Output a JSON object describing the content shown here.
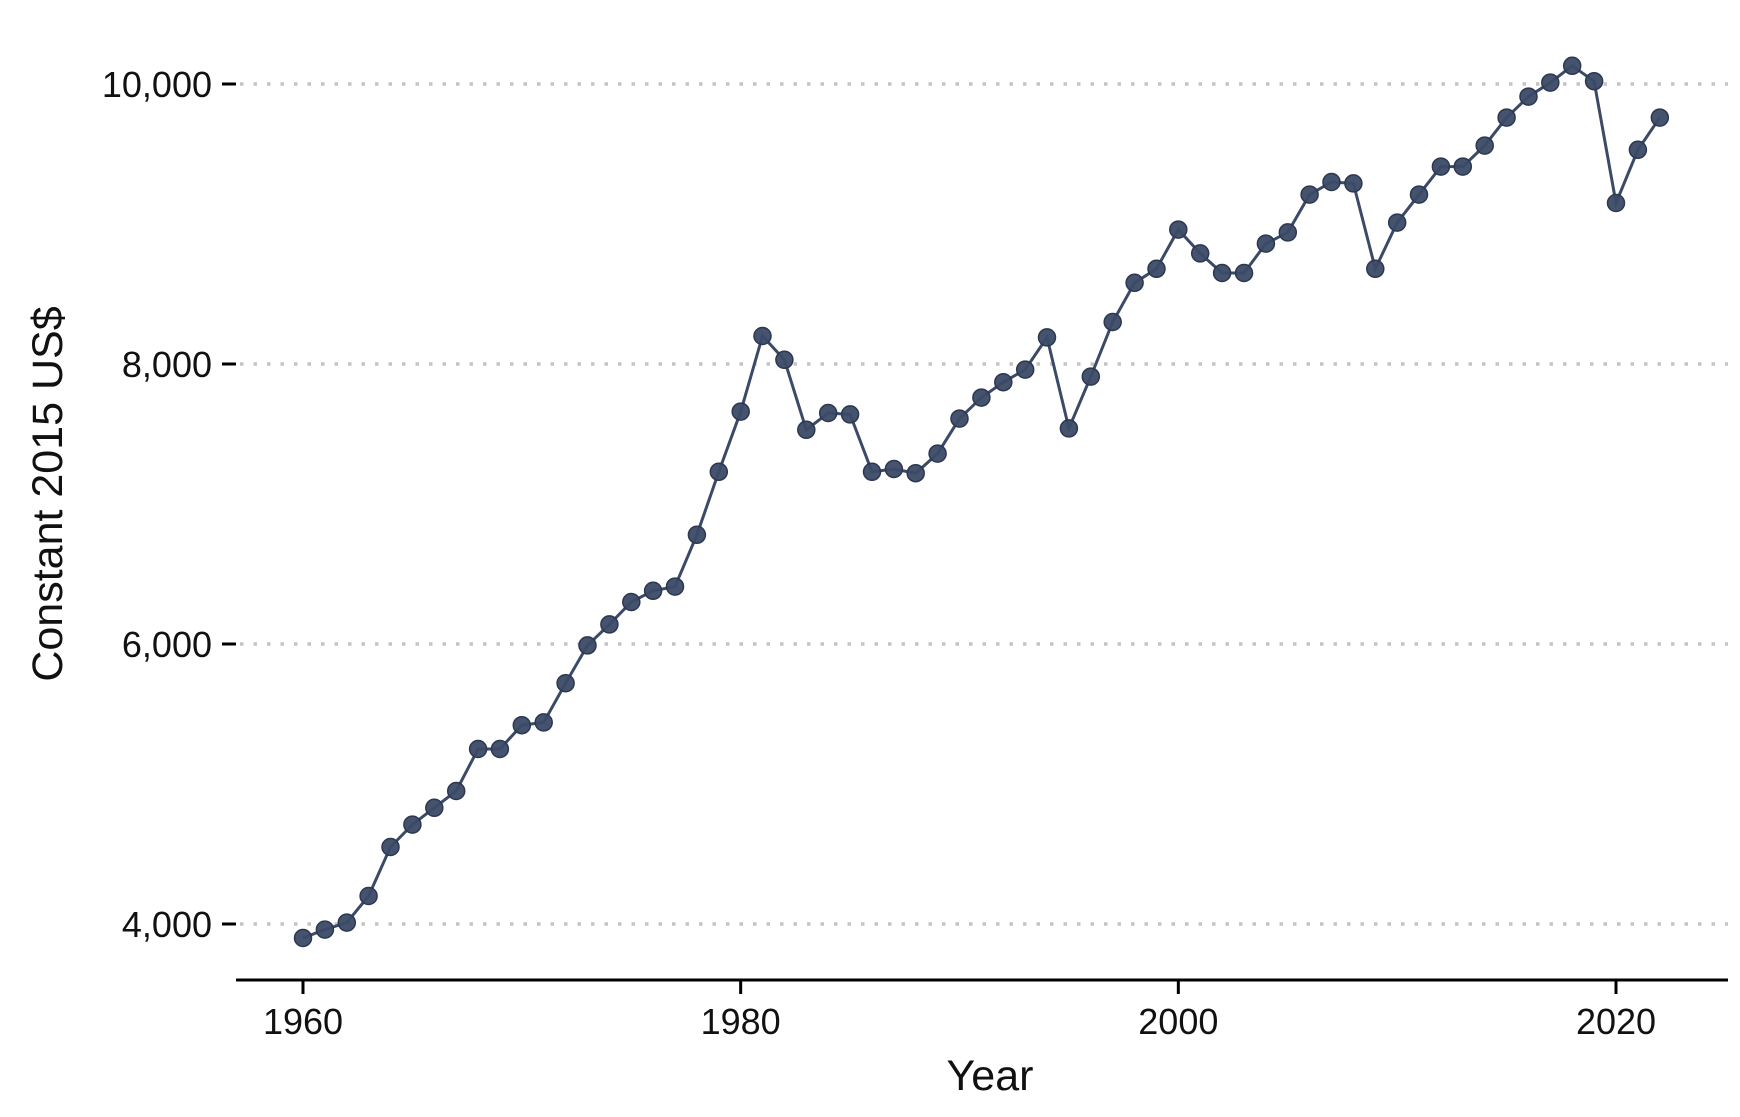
{
  "chart_data": {
    "type": "line",
    "title": "",
    "xlabel": "Year",
    "ylabel": "Constant 2015 US$",
    "xlim": [
      1957,
      2025
    ],
    "ylim": [
      3600,
      10300
    ],
    "xticks": [
      1960,
      1980,
      2000,
      2020
    ],
    "xtick_labels": [
      "1960",
      "1980",
      "2000",
      "2020"
    ],
    "yticks": [
      4000,
      6000,
      8000,
      10000
    ],
    "ytick_labels": [
      "4,000",
      "6,000",
      "8,000",
      "10,000"
    ],
    "grid": "horizontal dotted",
    "legend": "none",
    "line_color": "#3b4a66",
    "grid_color": "#c4c4c4",
    "series": [
      {
        "x": [
          1960,
          1961,
          1962,
          1963,
          1964,
          1965,
          1966,
          1967,
          1968,
          1969,
          1970,
          1971,
          1972,
          1973,
          1974,
          1975,
          1976,
          1977,
          1978,
          1979,
          1980,
          1981,
          1982,
          1983,
          1984,
          1985,
          1986,
          1987,
          1988,
          1989,
          1990,
          1991,
          1992,
          1993,
          1994,
          1995,
          1996,
          1997,
          1998,
          1999,
          2000,
          2001,
          2002,
          2003,
          2004,
          2005,
          2006,
          2007,
          2008,
          2009,
          2010,
          2011,
          2012,
          2013,
          2014,
          2015,
          2016,
          2017,
          2018,
          2019,
          2020,
          2021,
          2022
        ],
        "values": [
          3900,
          3960,
          4010,
          4200,
          4550,
          4710,
          4830,
          4950,
          5250,
          5250,
          5420,
          5440,
          5720,
          5990,
          6140,
          6300,
          6380,
          6410,
          6780,
          7230,
          7660,
          8200,
          8030,
          7530,
          7650,
          7640,
          7230,
          7250,
          7220,
          7360,
          7610,
          7760,
          7870,
          7960,
          8190,
          7540,
          7910,
          8300,
          8580,
          8680,
          8960,
          8790,
          8650,
          8650,
          8860,
          8940,
          9210,
          9300,
          9290,
          8680,
          9010,
          9210,
          9410,
          9410,
          9560,
          9760,
          9910,
          10010,
          10130,
          10020,
          9150,
          9530,
          9760
        ]
      }
    ]
  }
}
